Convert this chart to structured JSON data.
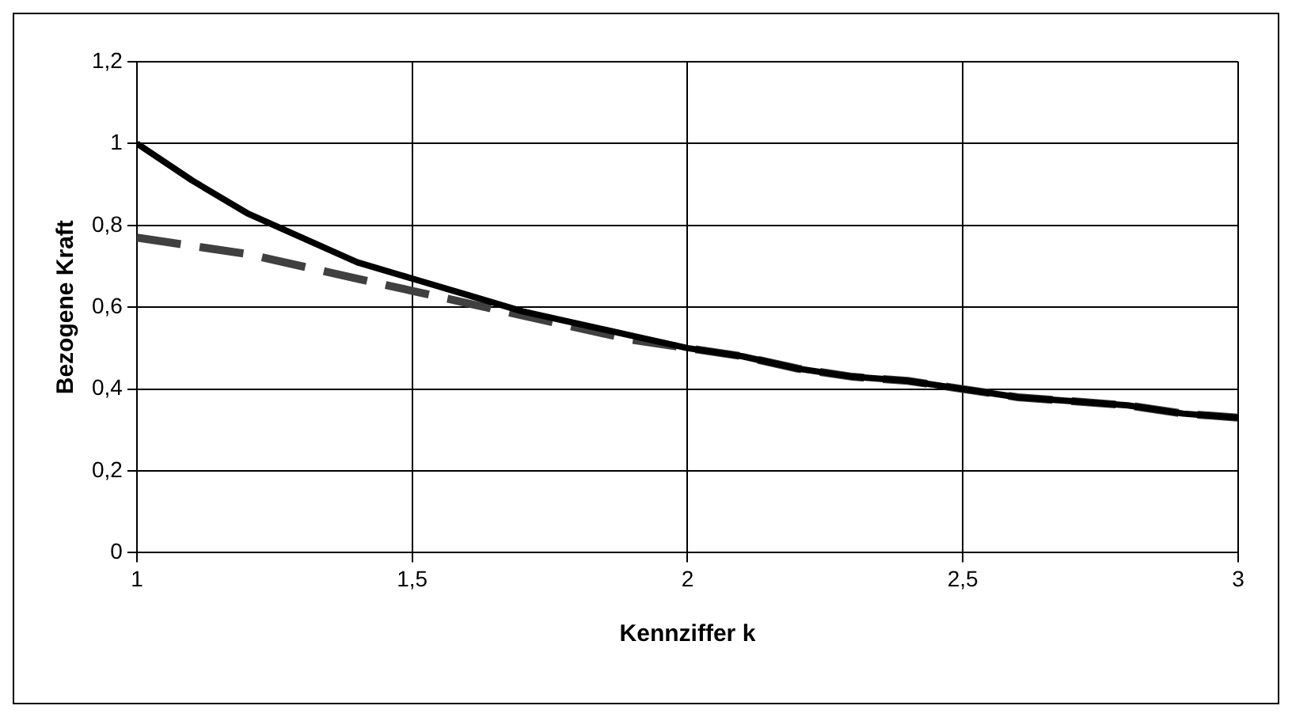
{
  "chart_data": {
    "type": "line",
    "xlabel": "Kennziffer k",
    "ylabel": "Bezogene Kraft",
    "xlim": [
      1,
      3
    ],
    "xticks": [
      1,
      {
        "value": 1.5,
        "label": "1,5"
      },
      2,
      {
        "value": 2.5,
        "label": "2,5"
      },
      3
    ],
    "ylim": [
      0,
      1.2
    ],
    "yticks": [
      0,
      {
        "value": 0.2,
        "label": "0,2"
      },
      {
        "value": 0.4,
        "label": "0,4"
      },
      {
        "value": 0.6,
        "label": "0,6"
      },
      {
        "value": 0.8,
        "label": "0,8"
      },
      1,
      {
        "value": 1.2,
        "label": "1,2"
      }
    ],
    "grid": true,
    "marker": "none",
    "x": [
      1,
      1.1,
      1.2,
      1.3,
      1.4,
      1.5,
      1.6,
      1.7,
      1.8,
      1.9,
      2,
      2.1,
      2.2,
      2.3,
      2.4,
      2.5,
      2.6,
      2.7,
      2.8,
      2.9,
      3
    ],
    "series": [
      {
        "color": "#000000",
        "line_style": "solid",
        "values": [
          1,
          0.91,
          0.83,
          0.77,
          0.71,
          0.67,
          0.63,
          0.59,
          0.56,
          0.53,
          0.5,
          0.48,
          0.45,
          0.43,
          0.42,
          0.4,
          0.38,
          0.37,
          0.36,
          0.34,
          0.33
        ]
      },
      {
        "color": "#404040",
        "line_style": "dashed",
        "values": [
          0.77,
          0.75,
          0.73,
          0.7,
          0.67,
          0.64,
          0.61,
          0.58,
          0.55,
          0.52,
          0.5,
          0.48,
          0.45,
          0.43,
          0.42,
          0.4,
          0.38,
          0.37,
          0.36,
          0.34,
          0.33
        ]
      }
    ]
  }
}
